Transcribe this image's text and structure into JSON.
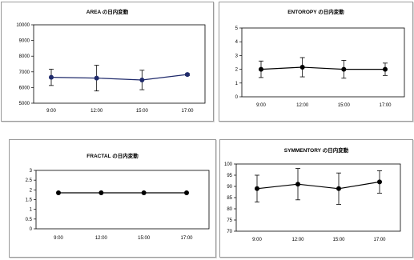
{
  "chart_data": [
    {
      "type": "line",
      "title": "AREA の日内変動",
      "categories": [
        "9:00",
        "12:00",
        "15:00",
        "17:00"
      ],
      "series": [
        {
          "values": [
            6650,
            6600,
            6480,
            6830
          ],
          "errors": [
            520,
            820,
            620,
            60
          ]
        }
      ],
      "ylim": [
        5000,
        10000
      ],
      "yticks": [
        "5000",
        "6000",
        "7000",
        "8000",
        "9000",
        "10000"
      ],
      "grid": false,
      "line_color": "#1f2a6b",
      "marker_color": "#1f2a6b"
    },
    {
      "type": "line",
      "title": "ENTOROPY の日内変動",
      "categories": [
        "9:00",
        "12:00",
        "15:00",
        "17:00"
      ],
      "series": [
        {
          "values": [
            2.0,
            2.15,
            2.0,
            2.0
          ],
          "errors": [
            0.6,
            0.7,
            0.65,
            0.45
          ]
        }
      ],
      "ylim": [
        0,
        5
      ],
      "yticks": [
        "0",
        "1",
        "2",
        "3",
        "4",
        "5"
      ],
      "grid": false,
      "line_color": "#000000",
      "marker_color": "#000000"
    },
    {
      "type": "line",
      "title": "FRACTAL の日内変動",
      "categories": [
        "9:00",
        "12:00",
        "15:00",
        "17:00"
      ],
      "series": [
        {
          "values": [
            1.85,
            1.85,
            1.85,
            1.85
          ],
          "errors": [
            0,
            0,
            0,
            0
          ]
        }
      ],
      "ylim": [
        0,
        3
      ],
      "yticks": [
        "0",
        "0.5",
        "1",
        "1.5",
        "2",
        "2.5",
        "3"
      ],
      "grid": false,
      "line_color": "#000000",
      "marker_color": "#000000"
    },
    {
      "type": "line",
      "title": "SYMMENTORY の日内変動",
      "categories": [
        "9:00",
        "12:00",
        "15:00",
        "17:00"
      ],
      "series": [
        {
          "values": [
            89,
            91,
            89,
            92
          ],
          "errors": [
            6,
            7,
            7,
            5
          ]
        }
      ],
      "ylim": [
        70,
        100
      ],
      "yticks": [
        "70",
        "75",
        "80",
        "85",
        "90",
        "95",
        "100"
      ],
      "grid": false,
      "line_color": "#000000",
      "marker_color": "#000000"
    }
  ]
}
